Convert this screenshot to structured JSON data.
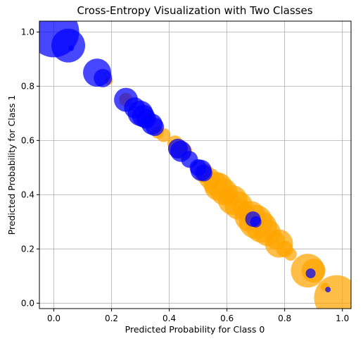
{
  "chart_data": {
    "type": "scatter",
    "title": "Cross-Entropy Visualization with Two Classes",
    "xlabel": "Predicted Probability for Class 0",
    "ylabel": "Predicted Probability for Class 1",
    "xlim": [
      -0.05,
      1.03
    ],
    "ylim": [
      -0.02,
      1.04
    ],
    "xticks": [
      "0.0",
      "0.2",
      "0.4",
      "0.6",
      "0.8",
      "1.0"
    ],
    "yticks": [
      "0.0",
      "0.2",
      "0.4",
      "0.6",
      "0.8",
      "1.0"
    ],
    "grid": true,
    "legend": false,
    "point_opacity": 0.72,
    "series": [
      {
        "color": "#ffa500",
        "points": [
          {
            "x": 0.98,
            "y": 0.02,
            "size": 32
          },
          {
            "x": 0.94,
            "y": 0.06,
            "size": 6
          },
          {
            "x": 0.9,
            "y": 0.12,
            "size": 17
          },
          {
            "x": 0.88,
            "y": 0.12,
            "size": 24
          },
          {
            "x": 0.82,
            "y": 0.18,
            "size": 9
          },
          {
            "x": 0.8,
            "y": 0.2,
            "size": 12
          },
          {
            "x": 0.78,
            "y": 0.22,
            "size": 20
          },
          {
            "x": 0.77,
            "y": 0.23,
            "size": 13
          },
          {
            "x": 0.74,
            "y": 0.26,
            "size": 19
          },
          {
            "x": 0.72,
            "y": 0.28,
            "size": 22
          },
          {
            "x": 0.7,
            "y": 0.3,
            "size": 24
          },
          {
            "x": 0.68,
            "y": 0.32,
            "size": 22
          },
          {
            "x": 0.67,
            "y": 0.33,
            "size": 12
          },
          {
            "x": 0.65,
            "y": 0.35,
            "size": 13
          },
          {
            "x": 0.64,
            "y": 0.36,
            "size": 20
          },
          {
            "x": 0.62,
            "y": 0.38,
            "size": 21
          },
          {
            "x": 0.61,
            "y": 0.39,
            "size": 13
          },
          {
            "x": 0.59,
            "y": 0.41,
            "size": 19
          },
          {
            "x": 0.57,
            "y": 0.43,
            "size": 20
          },
          {
            "x": 0.56,
            "y": 0.44,
            "size": 17
          },
          {
            "x": 0.54,
            "y": 0.46,
            "size": 15
          },
          {
            "x": 0.52,
            "y": 0.48,
            "size": 14
          },
          {
            "x": 0.45,
            "y": 0.56,
            "size": 12
          },
          {
            "x": 0.43,
            "y": 0.57,
            "size": 14
          },
          {
            "x": 0.42,
            "y": 0.59,
            "size": 11
          },
          {
            "x": 0.38,
            "y": 0.62,
            "size": 10
          },
          {
            "x": 0.36,
            "y": 0.63,
            "size": 9
          },
          {
            "x": 0.25,
            "y": 0.75,
            "size": 10
          },
          {
            "x": 0.245,
            "y": 0.755,
            "size": 7
          },
          {
            "x": 0.19,
            "y": 0.82,
            "size": 6
          }
        ]
      },
      {
        "color": "#0000ff",
        "points": [
          {
            "x": 0.0,
            "y": 1.0,
            "size": 36
          },
          {
            "x": 0.05,
            "y": 0.95,
            "size": 24
          },
          {
            "x": 0.06,
            "y": 0.94,
            "size": 4
          },
          {
            "x": 0.15,
            "y": 0.85,
            "size": 20
          },
          {
            "x": 0.17,
            "y": 0.83,
            "size": 13
          },
          {
            "x": 0.25,
            "y": 0.75,
            "size": 17
          },
          {
            "x": 0.28,
            "y": 0.72,
            "size": 15
          },
          {
            "x": 0.3,
            "y": 0.7,
            "size": 18
          },
          {
            "x": 0.31,
            "y": 0.69,
            "size": 16
          },
          {
            "x": 0.32,
            "y": 0.68,
            "size": 14
          },
          {
            "x": 0.34,
            "y": 0.66,
            "size": 15
          },
          {
            "x": 0.35,
            "y": 0.65,
            "size": 13
          },
          {
            "x": 0.43,
            "y": 0.57,
            "size": 14
          },
          {
            "x": 0.44,
            "y": 0.56,
            "size": 15
          },
          {
            "x": 0.47,
            "y": 0.53,
            "size": 12
          },
          {
            "x": 0.5,
            "y": 0.5,
            "size": 12
          },
          {
            "x": 0.51,
            "y": 0.49,
            "size": 15
          },
          {
            "x": 0.52,
            "y": 0.48,
            "size": 12
          },
          {
            "x": 0.69,
            "y": 0.31,
            "size": 11
          },
          {
            "x": 0.7,
            "y": 0.3,
            "size": 8
          },
          {
            "x": 0.89,
            "y": 0.11,
            "size": 7
          },
          {
            "x": 0.95,
            "y": 0.05,
            "size": 4
          }
        ]
      }
    ]
  }
}
